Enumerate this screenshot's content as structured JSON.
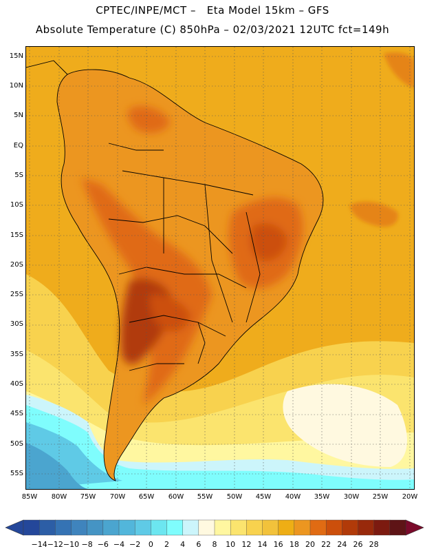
{
  "header": {
    "line1": "CPTEC/INPE/MCT –   Eta Model 15km – GFS",
    "line2": "Absolute Temperature (C) 850hPa – 02/03/2021 12UTC fct=149h"
  },
  "map": {
    "latitude_labels": [
      "15N",
      "10N",
      "5N",
      "EQ",
      "5S",
      "10S",
      "15S",
      "20S",
      "25S",
      "30S",
      "35S",
      "40S",
      "45S",
      "50S",
      "55S"
    ],
    "longitude_labels": [
      "85W",
      "80W",
      "75W",
      "70W",
      "65W",
      "60W",
      "55W",
      "50W",
      "45W",
      "40W",
      "35W",
      "30W",
      "25W",
      "20W"
    ],
    "extent": {
      "lon_min": -86,
      "lon_max": -19.5,
      "lat_max": 16,
      "lat_min": -58
    }
  },
  "colorbar": {
    "tick_labels": [
      "-14",
      "-12",
      "-10",
      "-8",
      "-6",
      "-4",
      "-2",
      "0",
      "2",
      "4",
      "6",
      "8",
      "10",
      "12",
      "14",
      "16",
      "18",
      "20",
      "22",
      "24",
      "26",
      "28"
    ],
    "colors": [
      "#24479a",
      "#2c5ea6",
      "#3573b4",
      "#3f84bd",
      "#4594c4",
      "#4ba5cf",
      "#52b6db",
      "#5fcae6",
      "#6ce6f0",
      "#7ffdfd",
      "#ccf5fb",
      "#fff9e0",
      "#fff7a0",
      "#fbe46e",
      "#f8d24e",
      "#f2c23b",
      "#eeae15",
      "#ec9620",
      "#e06b13",
      "#cc4f0b",
      "#b13a09",
      "#98290b",
      "#7c1a10",
      "#5e1416"
    ],
    "under_color": "#24479a",
    "over_color": "#7a0a2a"
  },
  "legend_fields": {
    "hot_core": "#a8431a",
    "warm_land": "#d97a25",
    "ocean_tropical": "#efac1c",
    "mid_lat": "#fbe46e",
    "cool": "#fff3c8",
    "cold_south": "#6ce6f0"
  }
}
